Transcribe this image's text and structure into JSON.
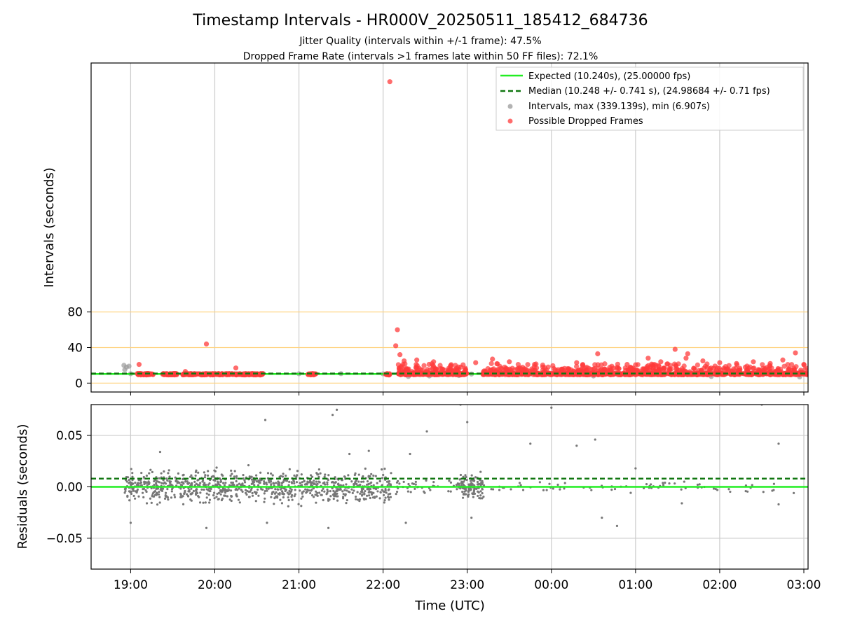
{
  "chart_data": [
    {
      "type": "scatter",
      "title": "Timestamp Intervals - HR000V_20250511_185412_684736",
      "subtitle_lines": [
        "Jitter Quality (intervals within +/-1 frame): 47.5%",
        "Dropped Frame Rate (intervals >1 frames late within 50 FF files): 72.1%"
      ],
      "xlabel": "",
      "ylabel": "Intervals (seconds)",
      "xlim_hours": [
        18.53,
        27.05
      ],
      "ylim": [
        -10,
        360
      ],
      "yticks": [
        0,
        40,
        80
      ],
      "reference_lines": [
        0,
        40,
        80
      ],
      "reference_color": "#ffd27f",
      "grid": "x",
      "legend": "top-right",
      "legend_entries": [
        {
          "label": "Expected (10.240s), (25.00000 fps)",
          "style": "solid-line",
          "color": "#22ee22"
        },
        {
          "label": "Median (10.248 +/- 0.741 s), (24.98684 +/- 0.71 fps)",
          "style": "dashed-line",
          "color": "#117711"
        },
        {
          "label": "Intervals, max (339.139s), min (6.907s)",
          "style": "marker",
          "color": "#9a9a9a"
        },
        {
          "label": "Possible Dropped Frames",
          "style": "marker",
          "color": "#ff3b3b"
        }
      ],
      "expected_interval": 10.24,
      "median_interval": 10.248,
      "series": [
        {
          "name": "Intervals, max (339.139s), min (6.907s)",
          "color": "#9a9a9a",
          "points": [
            [
              18.92,
              20
            ],
            [
              18.95,
              18
            ],
            [
              18.98,
              19
            ],
            [
              18.93,
              15
            ],
            [
              19.0,
              10.5
            ],
            [
              19.5,
              10.6
            ],
            [
              20.0,
              10.5
            ],
            [
              20.5,
              10.4
            ],
            [
              21.0,
              10.5
            ],
            [
              21.5,
              10.6
            ],
            [
              22.0,
              10.4
            ],
            [
              22.3,
              7.5
            ],
            [
              22.55,
              8
            ],
            [
              22.9,
              8.5
            ],
            [
              23.05,
              10.2
            ],
            [
              24.5,
              8
            ],
            [
              25.9,
              7.5
            ],
            [
              26.95,
              7
            ]
          ],
          "band": {
            "x_from": 18.9,
            "x_to": 22.1,
            "y_from": 9.8,
            "y_to": 11
          }
        },
        {
          "name": "Possible Dropped Frames",
          "color": "#ff3b3b",
          "points": [
            [
              19.1,
              21
            ],
            [
              19.65,
              13
            ],
            [
              19.9,
              44
            ],
            [
              20.25,
              17
            ],
            [
              22.08,
              339
            ],
            [
              22.17,
              60
            ],
            [
              22.15,
              42
            ],
            [
              22.2,
              32
            ],
            [
              22.25,
              25
            ],
            [
              22.4,
              26
            ],
            [
              22.6,
              24
            ],
            [
              22.8,
              19
            ],
            [
              23.1,
              23
            ],
            [
              23.3,
              27
            ],
            [
              23.5,
              24
            ],
            [
              23.8,
              21
            ],
            [
              24.3,
              23
            ],
            [
              24.55,
              33
            ],
            [
              24.9,
              21
            ],
            [
              25.15,
              28
            ],
            [
              25.3,
              24
            ],
            [
              25.47,
              38
            ],
            [
              25.6,
              28
            ],
            [
              25.62,
              33
            ],
            [
              25.8,
              25
            ],
            [
              26.0,
              23
            ],
            [
              26.2,
              22
            ],
            [
              26.4,
              24
            ],
            [
              26.6,
              22
            ],
            [
              26.75,
              26
            ],
            [
              26.9,
              34
            ],
            [
              27.0,
              21
            ]
          ],
          "clusters": [
            {
              "x_from": 19.07,
              "x_to": 19.27,
              "count": 60
            },
            {
              "x_from": 19.38,
              "x_to": 19.55,
              "count": 50
            },
            {
              "x_from": 19.62,
              "x_to": 20.1,
              "count": 120
            },
            {
              "x_from": 20.12,
              "x_to": 20.58,
              "count": 110
            },
            {
              "x_from": 21.1,
              "x_to": 21.2,
              "count": 30
            },
            {
              "x_from": 22.02,
              "x_to": 22.08,
              "count": 12
            },
            {
              "x_from": 22.18,
              "x_to": 23.0,
              "count": 300
            },
            {
              "x_from": 23.18,
              "x_to": 27.05,
              "count": 1100
            }
          ]
        }
      ]
    },
    {
      "type": "scatter",
      "ylabel": "Residuals (seconds)",
      "xlabel": "Time (UTC)",
      "xlim_hours": [
        18.53,
        27.05
      ],
      "ylim": [
        -0.08,
        0.08
      ],
      "yticks": [
        0.05,
        0.0,
        -0.05
      ],
      "ytick_labels": [
        "0.05",
        "0.00",
        "−0.05"
      ],
      "xticks_hours": [
        19,
        20,
        21,
        22,
        23,
        24,
        25,
        26,
        27
      ],
      "xtick_labels": [
        "19:00",
        "20:00",
        "21:00",
        "22:00",
        "23:00",
        "00:00",
        "01:00",
        "02:00",
        "03:00"
      ],
      "grid": "both",
      "expected_residual": 0.0,
      "median_residual": 0.008,
      "series": [
        {
          "name": "Residuals",
          "color": "#777777",
          "points": [
            [
              19.0,
              -0.035
            ],
            [
              19.35,
              0.034
            ],
            [
              19.9,
              -0.04
            ],
            [
              20.4,
              0.021
            ],
            [
              20.6,
              0.065
            ],
            [
              20.62,
              -0.035
            ],
            [
              21.4,
              0.07
            ],
            [
              21.45,
              0.075
            ],
            [
              21.35,
              -0.04
            ],
            [
              21.6,
              0.032
            ],
            [
              21.83,
              0.035
            ],
            [
              22.32,
              0.032
            ],
            [
              22.52,
              0.054
            ],
            [
              22.27,
              -0.035
            ],
            [
              22.92,
              0.08
            ],
            [
              23.0,
              0.063
            ],
            [
              23.05,
              -0.03
            ],
            [
              23.75,
              0.042
            ],
            [
              24.0,
              0.077
            ],
            [
              24.3,
              0.04
            ],
            [
              24.52,
              0.046
            ],
            [
              24.6,
              -0.03
            ],
            [
              24.78,
              -0.038
            ],
            [
              25.0,
              0.018
            ],
            [
              25.55,
              -0.016
            ],
            [
              26.5,
              0.08
            ],
            [
              26.7,
              0.042
            ],
            [
              26.7,
              -0.017
            ],
            [
              26.88,
              -0.006
            ]
          ],
          "clusters": [
            {
              "x_from": 18.93,
              "x_to": 22.1,
              "count": 900,
              "spread": 0.012
            },
            {
              "x_from": 22.15,
              "x_to": 22.9,
              "count": 40,
              "spread": 0.006
            },
            {
              "x_from": 22.9,
              "x_to": 23.2,
              "count": 120,
              "spread": 0.01
            },
            {
              "x_from": 23.2,
              "x_to": 27.05,
              "count": 70,
              "spread": 0.004
            }
          ]
        }
      ]
    }
  ]
}
